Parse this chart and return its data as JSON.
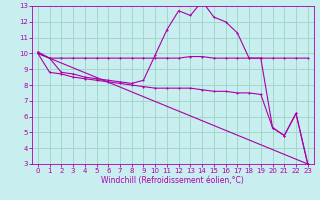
{
  "xlabel": "Windchill (Refroidissement éolien,°C)",
  "background_color": "#c8eef0",
  "grid_color": "#a0d8c8",
  "line_color": "#aa00aa",
  "xlim": [
    -0.5,
    23.5
  ],
  "ylim": [
    3,
    13
  ],
  "xticks": [
    0,
    1,
    2,
    3,
    4,
    5,
    6,
    7,
    8,
    9,
    10,
    11,
    12,
    13,
    14,
    15,
    16,
    17,
    18,
    19,
    20,
    21,
    22,
    23
  ],
  "yticks": [
    3,
    4,
    5,
    6,
    7,
    8,
    9,
    10,
    11,
    12,
    13
  ],
  "series1_x": [
    0,
    1,
    2,
    3,
    4,
    5,
    6,
    7,
    8,
    9,
    10,
    11,
    12,
    13,
    14,
    15,
    16,
    17,
    18,
    19,
    20,
    21,
    22,
    23
  ],
  "series1_y": [
    10.1,
    9.7,
    8.8,
    8.7,
    8.5,
    8.4,
    8.3,
    8.2,
    8.1,
    8.3,
    9.9,
    11.5,
    12.7,
    12.4,
    13.3,
    12.3,
    12.0,
    11.3,
    9.7,
    9.7,
    5.3,
    4.8,
    6.2,
    3.0
  ],
  "series2_x": [
    0,
    1,
    2,
    3,
    4,
    5,
    6,
    7,
    8,
    9,
    10,
    11,
    12,
    13,
    14,
    15,
    16,
    17,
    18,
    19,
    20,
    21,
    22,
    23
  ],
  "series2_y": [
    10.0,
    9.7,
    9.7,
    9.7,
    9.7,
    9.7,
    9.7,
    9.7,
    9.7,
    9.7,
    9.7,
    9.7,
    9.7,
    9.8,
    9.8,
    9.7,
    9.7,
    9.7,
    9.7,
    9.7,
    9.7,
    9.7,
    9.7,
    9.7
  ],
  "series3_x": [
    0,
    1,
    2,
    3,
    4,
    5,
    6,
    7,
    8,
    9,
    10,
    11,
    12,
    13,
    14,
    15,
    16,
    17,
    18,
    19,
    20,
    21,
    22,
    23
  ],
  "series3_y": [
    10.0,
    8.8,
    8.7,
    8.5,
    8.4,
    8.3,
    8.2,
    8.1,
    8.0,
    7.9,
    7.8,
    7.8,
    7.8,
    7.8,
    7.7,
    7.6,
    7.6,
    7.5,
    7.5,
    7.4,
    5.3,
    4.8,
    6.2,
    3.0
  ],
  "series4_x": [
    0,
    23
  ],
  "series4_y": [
    10.0,
    3.0
  ]
}
